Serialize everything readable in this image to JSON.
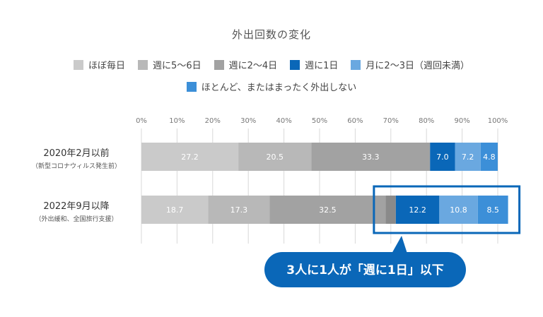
{
  "chart_data": {
    "type": "bar",
    "orientation": "horizontal",
    "stacked": true,
    "title": "外出回数の変化",
    "xlim": [
      0,
      100
    ],
    "x_ticks": [
      "0%",
      "10%",
      "20%",
      "30%",
      "40%",
      "50%",
      "60%",
      "70%",
      "80%",
      "90%",
      "100%"
    ],
    "grid": true,
    "legend_position": "top",
    "categories": [
      {
        "label": "2020年2月以前",
        "sublabel": "（新型コロナウィルス発生前）"
      },
      {
        "label": "2022年9月以降",
        "sublabel": "（外出緩和、全国旅行支援）"
      }
    ],
    "series": [
      {
        "name": "ほぼ毎日",
        "color": "#cacaca",
        "values": [
          27.2,
          18.7
        ]
      },
      {
        "name": "週に5〜6日",
        "color": "#b8b8b8",
        "values": [
          20.5,
          17.3
        ]
      },
      {
        "name": "週に2〜4日",
        "color": "#a2a2a2",
        "values": [
          33.3,
          32.5
        ]
      },
      {
        "name": "週に1日",
        "color": "#0a67b8",
        "values": [
          7.0,
          12.2
        ]
      },
      {
        "name": "月に2〜3日（週回未満）",
        "color": "#6aa8e0",
        "values": [
          7.2,
          10.8
        ]
      },
      {
        "name": "ほとんど、またはまったく外出しない",
        "color": "#3c8fd8",
        "values": [
          4.8,
          8.5
        ]
      }
    ],
    "unlabeled_gap": {
      "category_index": 1,
      "value": 2.9,
      "color": "#8a8a8a"
    },
    "annotation": {
      "text": "3人に1人が「週に1日」以下",
      "color": "#0a67b8",
      "highlight_category_index": 1,
      "highlight_series": [
        3,
        4,
        5
      ]
    }
  }
}
